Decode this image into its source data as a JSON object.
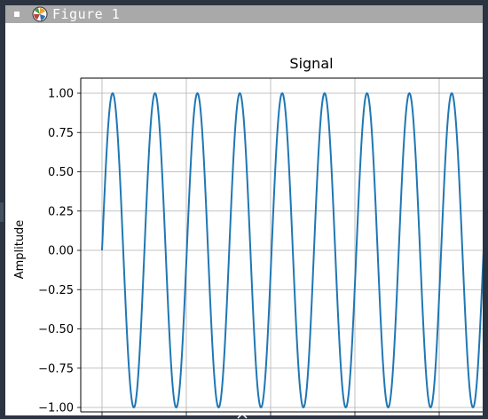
{
  "window": {
    "title": "Figure 1",
    "icons": [
      "window-menu-icon",
      "matplotlib-logo-icon",
      "resize-handle-icon",
      "expand-caret-icon"
    ]
  },
  "chart_data": {
    "type": "line",
    "title": "Signal",
    "xlabel": "",
    "ylabel": "Amplitude",
    "yticks": [
      "1.00",
      "0.75",
      "0.50",
      "0.25",
      "0.00",
      "−0.25",
      "−0.50",
      "−0.75",
      "−1.00"
    ],
    "ytick_values": [
      1.0,
      0.75,
      0.5,
      0.25,
      0.0,
      -0.25,
      -0.5,
      -0.75,
      -1.0
    ],
    "ylim": [
      -1.0,
      1.0
    ],
    "grid": true,
    "line_color": "#1f77b4",
    "series": [
      {
        "function": "sine",
        "amplitude": 1.0,
        "phase_start": 0.0,
        "cycles_visible": 9.0
      }
    ]
  }
}
